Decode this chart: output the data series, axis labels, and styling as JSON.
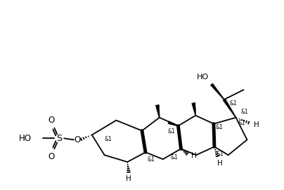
{
  "bg_color": "#ffffff",
  "line_color": "#000000",
  "lw": 1.3,
  "figsize": [
    4.04,
    2.71
  ],
  "dpi": 100,
  "xlim": [
    0,
    404
  ],
  "ylim": [
    0,
    271
  ]
}
